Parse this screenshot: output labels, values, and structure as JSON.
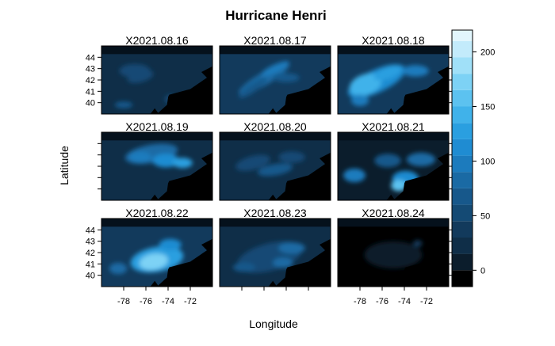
{
  "chart_data": {
    "type": "heatmap",
    "title": "Hurricane Henri",
    "xlabel": "Longitude",
    "ylabel": "Latitude",
    "xlim": [
      -80,
      -70
    ],
    "ylim": [
      39,
      45
    ],
    "x_ticks": [
      -78,
      -76,
      -74,
      -72
    ],
    "x_tick_labels": [
      "-78",
      "-76",
      "-74",
      "-72"
    ],
    "y_ticks": [
      40,
      41,
      42,
      43,
      44
    ],
    "y_tick_labels": [
      "40",
      "41",
      "42",
      "43",
      "44"
    ],
    "panels": [
      "X2021.08.16",
      "X2021.08.17",
      "X2021.08.18",
      "X2021.08.19",
      "X2021.08.20",
      "X2021.08.21",
      "X2021.08.22",
      "X2021.08.23",
      "X2021.08.24"
    ],
    "panel_grid": [
      3,
      3
    ],
    "colorbar": {
      "min": -15,
      "max": 220,
      "ticks": [
        0,
        50,
        100,
        150,
        200
      ],
      "tick_labels": [
        "0",
        "50",
        "100",
        "150",
        "200"
      ],
      "levels": [
        -15,
        0,
        15,
        30,
        45,
        60,
        75,
        90,
        105,
        120,
        135,
        150,
        165,
        180,
        195,
        210,
        220
      ],
      "colors": [
        "#000000",
        "#0b1d2c",
        "#0f2e48",
        "#123a5c",
        "#144a74",
        "#17588b",
        "#1a6aa4",
        "#1c7bbd",
        "#1f8cd2",
        "#2a9fe0",
        "#40b2ea",
        "#5cc2f0",
        "#7dd2f5",
        "#a0e0f8",
        "#c3ebfb",
        "#e2f6fd"
      ]
    }
  }
}
